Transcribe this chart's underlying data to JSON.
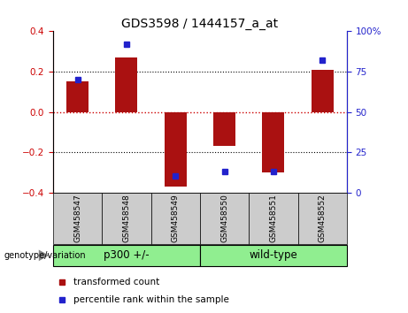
{
  "title": "GDS3598 / 1444157_a_at",
  "samples": [
    "GSM458547",
    "GSM458548",
    "GSM458549",
    "GSM458550",
    "GSM458551",
    "GSM458552"
  ],
  "red_bars": [
    0.15,
    0.27,
    -0.37,
    -0.17,
    -0.3,
    0.21
  ],
  "blue_squares_pct": [
    70,
    92,
    10,
    13,
    13,
    82
  ],
  "ylim_left": [
    -0.4,
    0.4
  ],
  "ylim_right": [
    0,
    100
  ],
  "yticks_left": [
    -0.4,
    -0.2,
    0,
    0.2,
    0.4
  ],
  "yticks_right": [
    0,
    25,
    50,
    75,
    100
  ],
  "ytick_labels_right": [
    "0",
    "25",
    "50",
    "75",
    "100%"
  ],
  "bar_color": "#aa1111",
  "square_color": "#2222cc",
  "zero_line_color": "#cc0000",
  "grid_color": "#000000",
  "group1_label": "p300 +/-",
  "group2_label": "wild-type",
  "group1_indices": [
    0,
    1,
    2
  ],
  "group2_indices": [
    3,
    4,
    5
  ],
  "group_color": "#90ee90",
  "genotype_label": "genotype/variation",
  "legend_bar_label": "transformed count",
  "legend_square_label": "percentile rank within the sample",
  "bar_width": 0.45,
  "xlim": [
    -0.5,
    5.5
  ]
}
